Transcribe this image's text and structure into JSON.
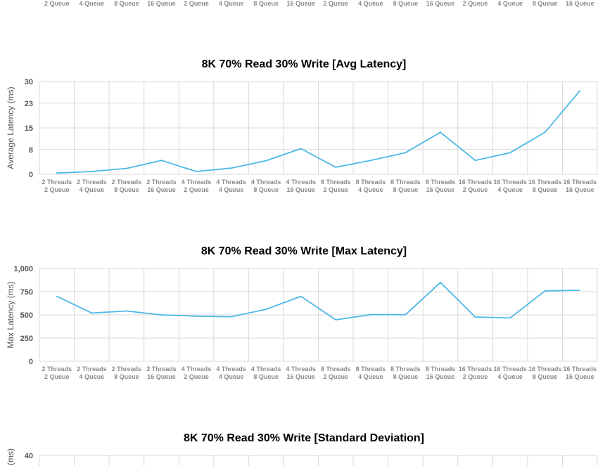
{
  "colors": {
    "series": "#4db8e8",
    "grid": "#d9d9d9",
    "tick": "#8a8a8a"
  },
  "top_strip": {
    "labels": [
      "2 Queue",
      "4 Queue",
      "8 Queue",
      "16 Queue",
      "2 Queue",
      "4 Queue",
      "8 Queue",
      "16 Queue",
      "2 Queue",
      "4 Queue",
      "8 Queue",
      "16 Queue",
      "2 Queue",
      "4 Queue",
      "8 Queue",
      "16 Queue"
    ]
  },
  "chart_data": [
    {
      "type": "line",
      "title": "8K 70% Read 30% Write [Avg Latency]",
      "ylabel": "Average Latency (ms)",
      "xlabel": "",
      "ylim": [
        0,
        30
      ],
      "yticks": [
        "0",
        "8",
        "15",
        "23",
        "30"
      ],
      "grid": true,
      "categories": [
        [
          "2 Threads",
          "2 Queue"
        ],
        [
          "2 Threads",
          "4 Queue"
        ],
        [
          "2 Threads",
          "8 Queue"
        ],
        [
          "2 Threads",
          "16 Queue"
        ],
        [
          "4 Threads",
          "2 Queue"
        ],
        [
          "4 Threads",
          "4 Queue"
        ],
        [
          "4 Threads",
          "8 Queue"
        ],
        [
          "4 Threads",
          "16 Queue"
        ],
        [
          "8 Threads",
          "2 Queue"
        ],
        [
          "8 Threads",
          "4 Queue"
        ],
        [
          "8 Threads",
          "8 Queue"
        ],
        [
          "8 Threads",
          "16 Queue"
        ],
        [
          "16 Threads",
          "2 Queue"
        ],
        [
          "16 Threads",
          "4 Queue"
        ],
        [
          "16 Threads",
          "8 Queue"
        ],
        [
          "16 Threads",
          "16 Queue"
        ]
      ],
      "series": [
        {
          "values": [
            0.4,
            0.9,
            1.9,
            4.5,
            0.9,
            2.0,
            4.4,
            8.3,
            2.3,
            4.5,
            7.0,
            13.6,
            4.5,
            7.0,
            13.6,
            27.0
          ]
        }
      ]
    },
    {
      "type": "line",
      "title": "8K 70% Read 30% Write [Max Latency]",
      "ylabel": "Max Latency (ms)",
      "xlabel": "",
      "ylim": [
        0,
        1000
      ],
      "yticks": [
        "0",
        "250",
        "500",
        "750",
        "1,000"
      ],
      "grid": true,
      "categories": [
        [
          "2 Threads",
          "2 Queue"
        ],
        [
          "2 Threads",
          "4 Queue"
        ],
        [
          "2 Threads",
          "8 Queue"
        ],
        [
          "2 Threads",
          "16 Queue"
        ],
        [
          "4 Threads",
          "2 Queue"
        ],
        [
          "4 Threads",
          "4 Queue"
        ],
        [
          "4 Threads",
          "8 Queue"
        ],
        [
          "4 Threads",
          "16 Queue"
        ],
        [
          "8 Threads",
          "2 Queue"
        ],
        [
          "8 Threads",
          "4 Queue"
        ],
        [
          "8 Threads",
          "8 Queue"
        ],
        [
          "8 Threads",
          "16 Queue"
        ],
        [
          "16 Threads",
          "2 Queue"
        ],
        [
          "16 Threads",
          "4 Queue"
        ],
        [
          "16 Threads",
          "8 Queue"
        ],
        [
          "16 Threads",
          "16 Queue"
        ]
      ],
      "series": [
        {
          "values": [
            700,
            520,
            542,
            500,
            486,
            480,
            560,
            700,
            447,
            502,
            502,
            850,
            477,
            467,
            758,
            765
          ]
        }
      ]
    },
    {
      "type": "line",
      "title": "8K 70% Read 30% Write [Standard Deviation]",
      "ylabel": "(ms)",
      "xlabel": "",
      "ylim": [
        0,
        40
      ],
      "yticks": [
        "40"
      ],
      "grid": true,
      "categories": [],
      "series": []
    }
  ]
}
